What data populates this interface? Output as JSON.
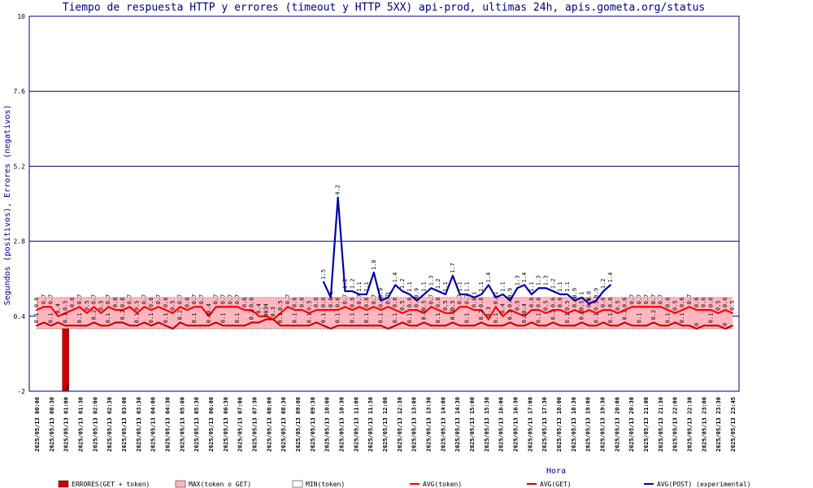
{
  "chart_data": {
    "type": "line",
    "title": "Tiempo de respuesta HTTP y errores (timeout y HTTP 5XX) api-prod, ultimas 24h, apis.gometa.org/status",
    "xlabel": "Hora",
    "ylabel": "Segundos (positivos), Errores (negativos)",
    "ylim": [
      -2,
      10
    ],
    "yticks": [
      -2,
      0.4,
      2.8,
      5.2,
      7.6,
      10
    ],
    "grid": true,
    "legend_placement": "bottom",
    "x_tick_labels": [
      "2025/05/13 00:00",
      "2025/05/13 00:30",
      "2025/05/13 01:00",
      "2025/05/13 01:30",
      "2025/05/13 02:00",
      "2025/05/13 02:30",
      "2025/05/13 03:00",
      "2025/05/13 03:30",
      "2025/05/13 04:00",
      "2025/05/13 04:30",
      "2025/05/13 05:00",
      "2025/05/13 05:30",
      "2025/05/13 06:00",
      "2025/05/13 06:30",
      "2025/05/13 07:00",
      "2025/05/13 07:30",
      "2025/05/13 08:00",
      "2025/05/13 08:30",
      "2025/05/13 09:00",
      "2025/05/13 09:30",
      "2025/05/13 10:00",
      "2025/05/13 10:30",
      "2025/05/13 11:00",
      "2025/05/13 11:30",
      "2025/05/13 12:00",
      "2025/05/13 12:30",
      "2025/05/13 13:00",
      "2025/05/13 13:30",
      "2025/05/13 14:00",
      "2025/05/13 14:30",
      "2025/05/13 15:00",
      "2025/05/13 15:30",
      "2025/05/13 16:00",
      "2025/05/13 16:30",
      "2025/05/13 17:00",
      "2025/05/13 17:30",
      "2025/05/13 18:00",
      "2025/05/13 18:30",
      "2025/05/13 19:00",
      "2025/05/13 19:30",
      "2025/05/13 20:00",
      "2025/05/13 20:30",
      "2025/05/13 21:00",
      "2025/05/13 21:30",
      "2025/05/13 22:00",
      "2025/05/13 22:30",
      "2025/05/13 23:00",
      "2025/05/13 23:30",
      "2025/05/13 23:45"
    ],
    "series": [
      {
        "name": "ERRORES(GET + token)",
        "kind": "bar",
        "color": "#cc0000",
        "points": [
          {
            "t": "2025/05/13 01:00",
            "value": -2,
            "label": "-2"
          }
        ]
      },
      {
        "name": "MAX(token o GET)",
        "kind": "band-top",
        "color": "#ffb6c1",
        "values": [
          1,
          1,
          1,
          1,
          1,
          1,
          1,
          1,
          1,
          1,
          1,
          1,
          1,
          1,
          1,
          1,
          1,
          1,
          1,
          1,
          1,
          1,
          1,
          1,
          1,
          1,
          1,
          1,
          1,
          1,
          1,
          1,
          1,
          1,
          1,
          1,
          1,
          1,
          1,
          1,
          1,
          1,
          1,
          1,
          1,
          1,
          1,
          1,
          1,
          1,
          1,
          1,
          1,
          1,
          1,
          1,
          1,
          1,
          1,
          1,
          1,
          1,
          1,
          1,
          1,
          1,
          1,
          1,
          1,
          1,
          1,
          1,
          1,
          1,
          1,
          1,
          1,
          1,
          1,
          1,
          1,
          1,
          1,
          1,
          1,
          1,
          1,
          1,
          1,
          1,
          1,
          1,
          1,
          1,
          1,
          1,
          1,
          1
        ]
      },
      {
        "name": "MIN(token)",
        "kind": "band-bottom",
        "color": "#ffffff",
        "values": [
          0,
          0,
          0,
          0,
          0,
          0,
          0,
          0,
          0,
          0,
          0,
          0,
          0,
          0,
          0,
          0,
          0,
          0,
          0,
          0,
          0,
          0,
          0,
          0,
          0,
          0,
          0,
          0,
          0,
          0,
          0,
          0,
          0,
          0,
          0,
          0,
          0,
          0,
          0,
          0,
          0,
          0,
          0,
          0,
          0,
          0,
          0,
          0,
          0,
          0,
          0,
          0,
          0,
          0,
          0,
          0,
          0,
          0,
          0,
          0,
          0,
          0,
          0,
          0,
          0,
          0,
          0,
          0,
          0,
          0,
          0,
          0,
          0,
          0,
          0,
          0,
          0,
          0,
          0,
          0,
          0,
          0,
          0,
          0,
          0,
          0,
          0,
          0,
          0,
          0,
          0,
          0,
          0,
          0,
          0,
          0,
          0,
          0
        ]
      },
      {
        "name": "AVG(token)",
        "kind": "line",
        "color": "#ff0000",
        "values": [
          0.6,
          0.7,
          0.7,
          0.4,
          0.5,
          0.6,
          0.7,
          0.5,
          0.7,
          0.5,
          0.7,
          0.6,
          0.6,
          0.7,
          0.5,
          0.7,
          0.6,
          0.7,
          0.6,
          0.5,
          0.7,
          0.6,
          0.7,
          0.7,
          0.4,
          0.7,
          0.7,
          0.7,
          0.7,
          0.6,
          0.6,
          0.4,
          0.4,
          0.3,
          0.5,
          0.7,
          0.6,
          0.6,
          0.5,
          0.6,
          0.6,
          0.6,
          0.6,
          0.7,
          0.6,
          0.7,
          0.6,
          0.7,
          0.6,
          0.7,
          0.6,
          0.5,
          0.6,
          0.6,
          0.5,
          0.7,
          0.6,
          0.5,
          0.5,
          0.7,
          0.7,
          0.6,
          0.6,
          0.3,
          0.7,
          0.4,
          0.6,
          0.5,
          0.4,
          0.6,
          0.6,
          0.5,
          0.6,
          0.6,
          0.5,
          0.6,
          0.5,
          0.6,
          0.5,
          0.6,
          0.6,
          0.5,
          0.6,
          0.7,
          0.7,
          0.7,
          0.7,
          0.7,
          0.6,
          0.5,
          0.6,
          0.7,
          0.6,
          0.6,
          0.6,
          0.5,
          0.6,
          0.5
        ]
      },
      {
        "name": "AVG(GET)",
        "kind": "line",
        "color": "#cc0000",
        "values": [
          0.1,
          0.2,
          0.1,
          0.2,
          0.1,
          0.1,
          0.1,
          0.1,
          0.2,
          0.1,
          0.1,
          0.2,
          0.2,
          0.1,
          0.1,
          0.2,
          0.1,
          0.2,
          0.1,
          0.0,
          0.2,
          0.1,
          0.1,
          0.1,
          0.1,
          0.2,
          0.1,
          0.1,
          0.1,
          0.1,
          0.2,
          0.2,
          0.3,
          0.3,
          0.1,
          0.1,
          0.1,
          0.1,
          0.1,
          0.2,
          0.1,
          0.0,
          0.1,
          0.1,
          0.1,
          0.1,
          0.1,
          0.1,
          0.1,
          0.0,
          0.1,
          0.2,
          0.1,
          0.1,
          0.2,
          0.1,
          0.1,
          0.1,
          0.2,
          0.1,
          0.1,
          0.1,
          0.2,
          0.1,
          0.1,
          0.1,
          0.2,
          0.1,
          0.1,
          0.2,
          0.1,
          0.1,
          0.2,
          0.1,
          0.1,
          0.1,
          0.2,
          0.1,
          0.1,
          0.2,
          0.1,
          0.1,
          0.2,
          0.1,
          0.1,
          0.1,
          0.2,
          0.1,
          0.1,
          0.2,
          0.1,
          0.1,
          0.0,
          0.1,
          0.1,
          0.1,
          0.0,
          0.1
        ]
      },
      {
        "name": "AVG(POST) (experimental)",
        "kind": "line",
        "color": "#0000aa",
        "start_index": 40,
        "values": [
          1.5,
          1.0,
          4.2,
          1.2,
          1.2,
          1.1,
          1.1,
          1.8,
          0.9,
          1.0,
          1.4,
          1.2,
          1.1,
          0.9,
          1.1,
          1.3,
          1.2,
          1.1,
          1.7,
          1.1,
          1.1,
          1.0,
          1.1,
          1.4,
          1.0,
          1.1,
          0.9,
          1.3,
          1.4,
          1.1,
          1.3,
          1.3,
          1.2,
          1.1,
          1.1,
          0.9,
          1.0,
          0.8,
          0.9,
          1.2,
          1.4
        ]
      }
    ]
  }
}
